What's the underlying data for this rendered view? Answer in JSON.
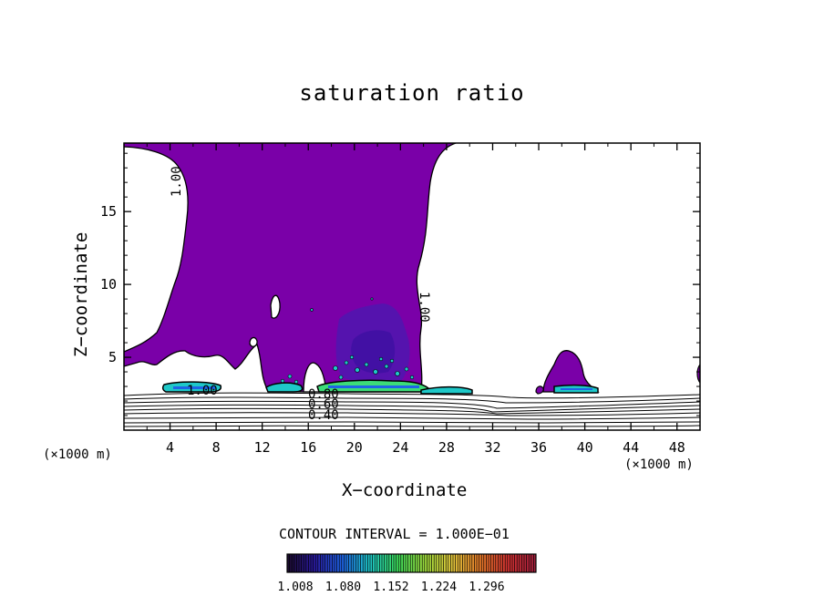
{
  "chart_data": {
    "type": "heatmap",
    "title": "saturation ratio",
    "xlabel": "X−coordinate",
    "ylabel": "Z−coordinate",
    "x_unit_label": "(×1000 m)",
    "x_ticks": [
      4,
      8,
      12,
      16,
      20,
      24,
      28,
      32,
      36,
      40,
      44,
      48
    ],
    "y_ticks": [
      5,
      10,
      15
    ],
    "xlim": [
      0,
      50
    ],
    "ylim": [
      0,
      19.7
    ],
    "contour_interval_label": "CONTOUR INTERVAL = 1.000E−01",
    "contour_labels": [
      "1.00",
      "1.00",
      "1.00",
      "0.80",
      "0.60",
      "0.40"
    ],
    "colorbar": {
      "ticks": [
        "1.008",
        "1.080",
        "1.152",
        "1.224",
        "1.296"
      ],
      "colors": [
        "#1a0a2a",
        "#2a1aa0",
        "#1e64e6",
        "#1ec8c8",
        "#3cdc5a",
        "#a0dc3c",
        "#e6c83c",
        "#e67828",
        "#d23232",
        "#a01e3c"
      ]
    },
    "fill_color": "#7a00a8",
    "cloud_core_color": "#4a1ab0",
    "cloud_base_colors": [
      "#1ec8c8",
      "#3cdc78",
      "#1e64e6"
    ]
  }
}
